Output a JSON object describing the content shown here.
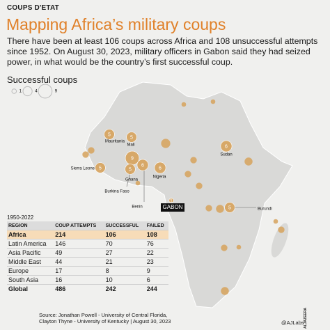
{
  "header": {
    "kicker": "COUPS D'ETAT",
    "title": "Mapping Africa’s military coups",
    "description": "There have been at least 106 coups across Africa and 108 unsuccessful attempts since 1952. On August 30, 2023, military officers in Gabon said they had seized power, in what would be the country’s first successful coup."
  },
  "legend": {
    "title": "Successful coups",
    "sizes": [
      1,
      4,
      9
    ]
  },
  "map": {
    "color": "#d6a25c",
    "countries": [
      {
        "name": "Mauritania",
        "coups": 5
      },
      {
        "name": "Mali",
        "coups": 5
      },
      {
        "name": "Sierra Leone",
        "coups": 5
      },
      {
        "name": "Burkina Faso",
        "coups": 9
      },
      {
        "name": "Ghana",
        "coups": 5
      },
      {
        "name": "Benin",
        "coups": 6
      },
      {
        "name": "Nigeria",
        "coups": 6
      },
      {
        "name": "Sudan",
        "coups": 6
      },
      {
        "name": "GABON",
        "coups": 1
      },
      {
        "name": "Burundi",
        "coups": 5
      }
    ],
    "other_coups": [
      2,
      2,
      1,
      1,
      4,
      2,
      3,
      2,
      2,
      3,
      2,
      1,
      3,
      1,
      2,
      1,
      2
    ]
  },
  "table": {
    "period": "1950-2022",
    "columns": [
      "REGION",
      "COUP ATTEMPTS",
      "SUCCESSFUL",
      "FAILED"
    ],
    "rows": [
      [
        "Africa",
        214,
        106,
        108
      ],
      [
        "Latin America",
        146,
        70,
        76
      ],
      [
        "Asia Pacific",
        49,
        27,
        22
      ],
      [
        "Middle East",
        44,
        21,
        23
      ],
      [
        "Europe",
        17,
        8,
        9
      ],
      [
        "South Asia",
        16,
        10,
        6
      ],
      [
        "Global",
        486,
        242,
        244
      ]
    ]
  },
  "footer": {
    "source_line1": "Source: Jonathan Powell - University of Central Florida,",
    "source_line2": "Clayton Thyne - University of Kentucky",
    "date": "August 30, 2023",
    "credit": "@AJLabs",
    "logo": "ALJAZEERA"
  }
}
